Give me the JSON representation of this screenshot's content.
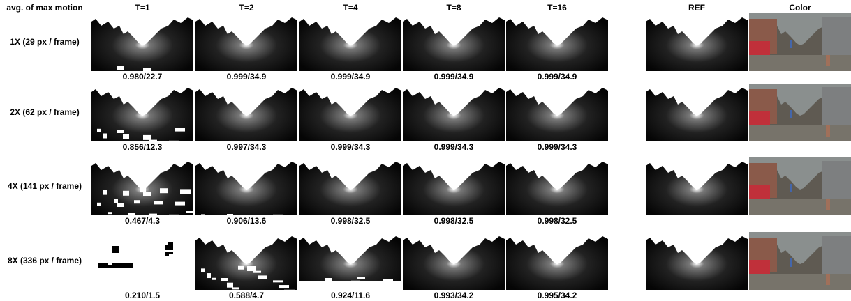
{
  "header": {
    "corner": "avg. of max motion",
    "columns": [
      "T=1",
      "T=2",
      "T=4",
      "T=8",
      "T=16",
      "REF",
      "Color"
    ]
  },
  "rows": [
    {
      "label": "1X (29 px / frame)",
      "scores": [
        "0.980/22.7",
        "0.999/34.9",
        "0.999/34.9",
        "0.999/34.9",
        "0.999/34.9"
      ]
    },
    {
      "label": "2X (62 px / frame)",
      "scores": [
        "0.856/12.3",
        "0.997/34.3",
        "0.999/34.3",
        "0.999/34.3",
        "0.999/34.3"
      ]
    },
    {
      "label": "4X (141 px / frame)",
      "scores": [
        "0.467/4.3",
        "0.906/13.6",
        "0.998/32.5",
        "0.998/32.5",
        "0.998/32.5"
      ]
    },
    {
      "label": "8X (336 px / frame)",
      "scores": [
        "0.210/1.5",
        "0.588/4.7",
        "0.924/11.6",
        "0.993/34.2",
        "0.995/34.2"
      ]
    }
  ]
}
